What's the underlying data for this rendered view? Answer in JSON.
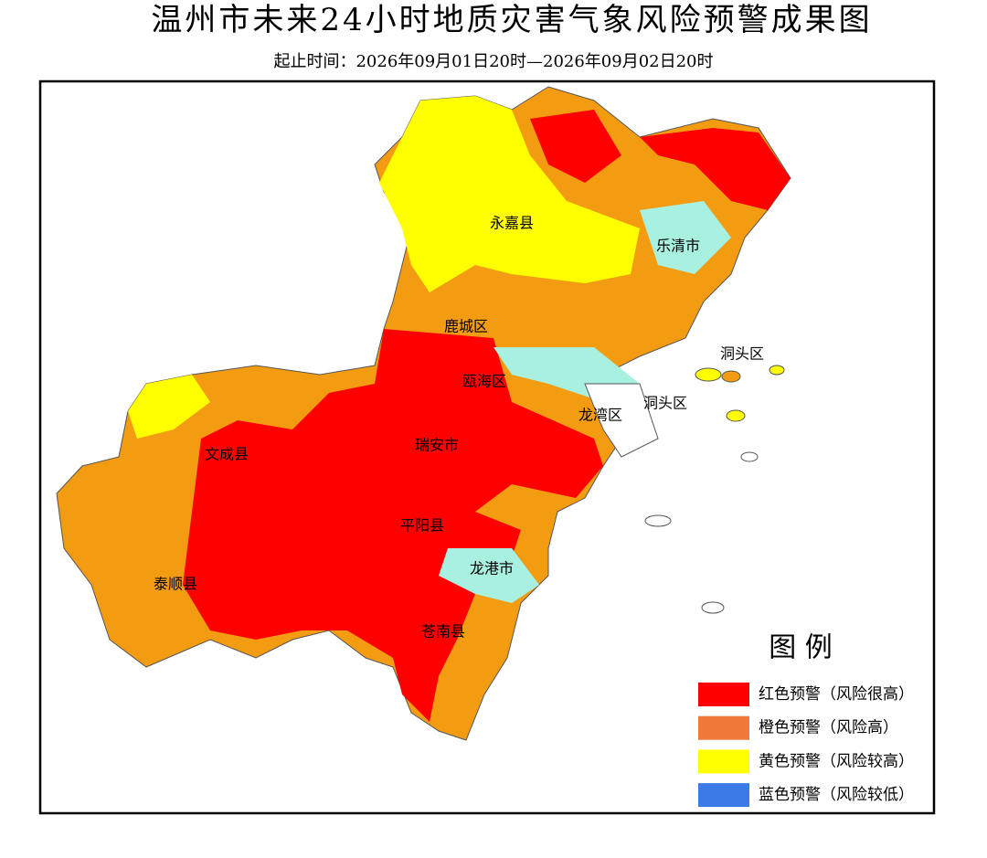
{
  "header": {
    "title": "温州市未来24小时地质灾害气象风险预警成果图",
    "subtitle": "起止时间：2026年09月01日20时—2026年09月02日20时"
  },
  "regions": [
    "永嘉县",
    "乐清市",
    "鹿城区",
    "瓯海区",
    "洞头区",
    "洞头区",
    "龙湾区",
    "瑞安市",
    "文成县",
    "平阳县",
    "泰顺县",
    "龙港市",
    "苍南县"
  ],
  "legend": {
    "title": "图 例",
    "items": [
      {
        "label": "红色预警（风险很高）",
        "color": "#ff0000"
      },
      {
        "label": "橙色预警（风险高）",
        "color": "#f07838"
      },
      {
        "label": "黄色预警（风险较高）",
        "color": "#ffff00"
      },
      {
        "label": "蓝色预警（风险较低）",
        "color": "#3a7be8"
      }
    ]
  }
}
